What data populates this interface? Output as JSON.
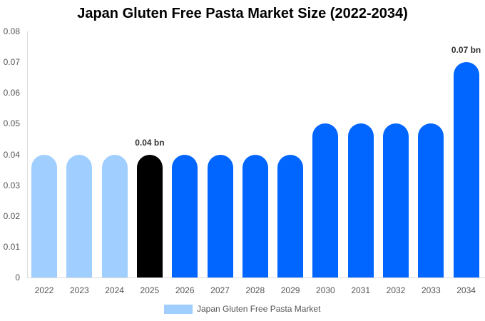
{
  "chart_data": {
    "type": "bar",
    "title": "Japan Gluten Free Pasta Market Size (2022-2034)",
    "xlabel": "",
    "ylabel": "",
    "ylim": [
      0,
      0.08
    ],
    "yticks": [
      "0",
      "0.01",
      "0.02",
      "0.03",
      "0.04",
      "0.05",
      "0.06",
      "0.07",
      "0.08"
    ],
    "categories": [
      "2022",
      "2023",
      "2024",
      "2025",
      "2026",
      "2027",
      "2028",
      "2029",
      "2030",
      "2031",
      "2032",
      "2033",
      "2034"
    ],
    "series": [
      {
        "name": "Japan Gluten Free Pasta Market",
        "values": [
          0.04,
          0.04,
          0.04,
          0.04,
          0.04,
          0.04,
          0.04,
          0.04,
          0.05,
          0.05,
          0.05,
          0.05,
          0.07
        ]
      }
    ],
    "bar_colors": [
      "#a0cfff",
      "#a0cfff",
      "#a0cfff",
      "#000000",
      "#0066ff",
      "#0066ff",
      "#0066ff",
      "#0066ff",
      "#0066ff",
      "#0066ff",
      "#0066ff",
      "#0066ff",
      "#0066ff"
    ],
    "annotations": [
      {
        "index": 3,
        "text": "0.04 bn"
      },
      {
        "index": 12,
        "text": "0.07 bn"
      }
    ],
    "grid": false,
    "legend": {
      "position": "bottom",
      "label": "Japan Gluten Free Pasta Market",
      "color": "#a0cfff"
    }
  }
}
